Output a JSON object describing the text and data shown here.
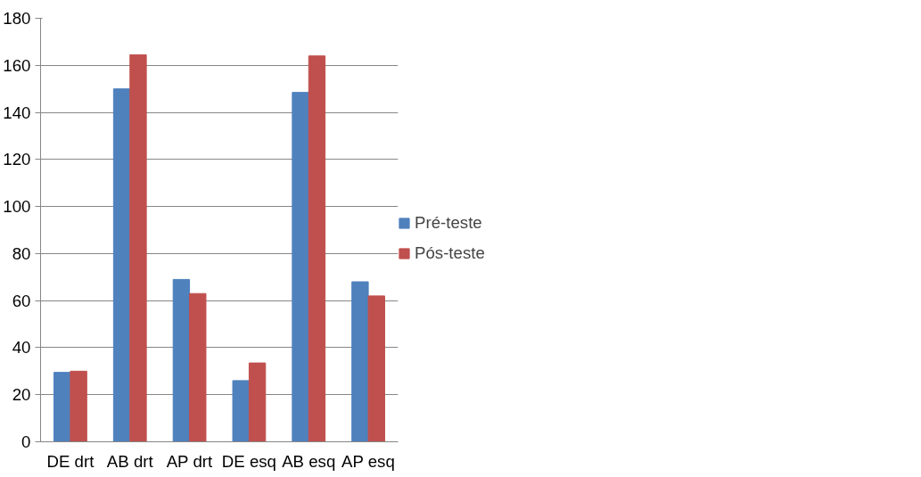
{
  "chart_data": {
    "type": "bar",
    "categories": [
      "DE drt",
      "AB drt",
      "AP drt",
      "DE esq",
      "AB esq",
      "AP esq"
    ],
    "series": [
      {
        "name": "Pré-teste",
        "color": "#4f81bd",
        "values": [
          29.5,
          150,
          69,
          26,
          148.5,
          68
        ]
      },
      {
        "name": "Pós-teste",
        "color": "#c0504d",
        "values": [
          30,
          164.5,
          63,
          33.5,
          164,
          62
        ]
      }
    ],
    "ylim": [
      0,
      180
    ],
    "yticks": [
      0,
      20,
      40,
      60,
      80,
      100,
      120,
      140,
      160,
      180
    ],
    "grid": "y",
    "legend": "right"
  }
}
